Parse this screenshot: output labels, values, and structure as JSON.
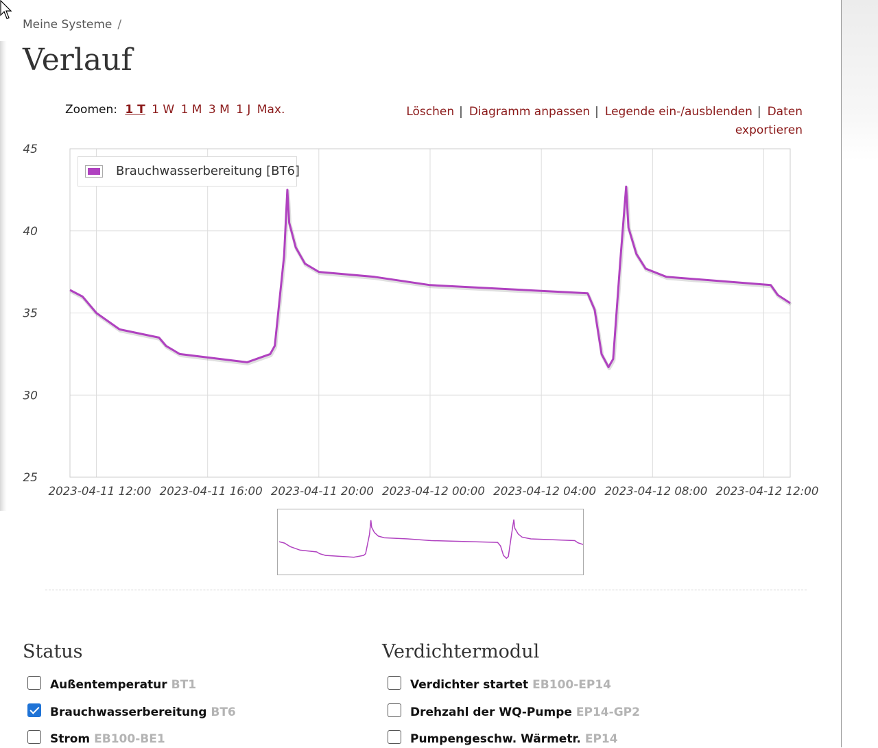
{
  "breadcrumb": {
    "label": "Meine Systeme",
    "separator": "/"
  },
  "page_title": "Verlauf",
  "zoom": {
    "label": "Zoomen:",
    "options": [
      "1 T",
      "1 W",
      "1 M",
      "3 M",
      "1 J",
      "Max."
    ],
    "active": "1 T"
  },
  "actions": {
    "delete": "Löschen",
    "customize": "Diagramm anpassen",
    "toggle_legend": "Legende ein-/ausblenden",
    "export_line1": "Daten",
    "export_line2": "exportieren",
    "separator": "|"
  },
  "colors": {
    "series": "#b042c0",
    "link": "#8b1a1a",
    "checkbox": "#1f73d6"
  },
  "chart_data": {
    "type": "line",
    "x_unit": "datetime",
    "xlim": [
      "2023-04-11 11:03",
      "2023-04-12 12:57"
    ],
    "ylim": [
      25,
      45
    ],
    "yticks": [
      25,
      30,
      35,
      40,
      45
    ],
    "xticks": [
      "2023-04-11 12:00",
      "2023-04-11 16:00",
      "2023-04-11 20:00",
      "2023-04-12 00:00",
      "2023-04-12 04:00",
      "2023-04-12 08:00",
      "2023-04-12 12:00"
    ],
    "grid": true,
    "legend_position": "top-left",
    "series": [
      {
        "name": "Brauchwasserbereitung [BT6]",
        "color": "#b042c0",
        "points": [
          [
            "2023-04-11 11:03",
            36.4
          ],
          [
            "2023-04-11 11:30",
            36.0
          ],
          [
            "2023-04-11 12:00",
            35.0
          ],
          [
            "2023-04-11 12:50",
            34.0
          ],
          [
            "2023-04-11 14:15",
            33.5
          ],
          [
            "2023-04-11 14:30",
            33.0
          ],
          [
            "2023-04-11 15:00",
            32.5
          ],
          [
            "2023-04-11 17:25",
            32.0
          ],
          [
            "2023-04-11 18:15",
            32.5
          ],
          [
            "2023-04-11 18:25",
            33.0
          ],
          [
            "2023-04-11 18:45",
            38.5
          ],
          [
            "2023-04-11 18:52",
            42.5
          ],
          [
            "2023-04-11 18:56",
            40.5
          ],
          [
            "2023-04-11 19:10",
            39.0
          ],
          [
            "2023-04-11 19:30",
            38.0
          ],
          [
            "2023-04-11 20:00",
            37.5
          ],
          [
            "2023-04-11 22:00",
            37.2
          ],
          [
            "2023-04-12 00:00",
            36.7
          ],
          [
            "2023-04-12 05:40",
            36.2
          ],
          [
            "2023-04-12 05:55",
            35.2
          ],
          [
            "2023-04-12 06:10",
            32.5
          ],
          [
            "2023-04-12 06:25",
            31.7
          ],
          [
            "2023-04-12 06:35",
            32.2
          ],
          [
            "2023-04-12 06:50",
            38.0
          ],
          [
            "2023-04-12 07:03",
            42.7
          ],
          [
            "2023-04-12 07:08",
            40.2
          ],
          [
            "2023-04-12 07:25",
            38.6
          ],
          [
            "2023-04-12 07:45",
            37.7
          ],
          [
            "2023-04-12 08:30",
            37.2
          ],
          [
            "2023-04-12 12:15",
            36.7
          ],
          [
            "2023-04-12 12:30",
            36.1
          ],
          [
            "2023-04-12 12:57",
            35.6
          ]
        ]
      }
    ]
  },
  "sections": {
    "status": {
      "title": "Status",
      "items": [
        {
          "label": "Außentemperatur",
          "code": "BT1",
          "checked": false
        },
        {
          "label": "Brauchwasserbereitung",
          "code": "BT6",
          "checked": true
        },
        {
          "label": "Strom",
          "code": "EB100-BE1",
          "checked": false
        }
      ]
    },
    "compressor": {
      "title": "Verdichtermodul",
      "items": [
        {
          "label": "Verdichter startet",
          "code": "EB100-EP14",
          "checked": false
        },
        {
          "label": "Drehzahl der WQ-Pumpe",
          "code": "EP14-GP2",
          "checked": false
        },
        {
          "label": "Pumpengeschw. Wärmetr.",
          "code": "EP14",
          "checked": false
        }
      ]
    }
  }
}
